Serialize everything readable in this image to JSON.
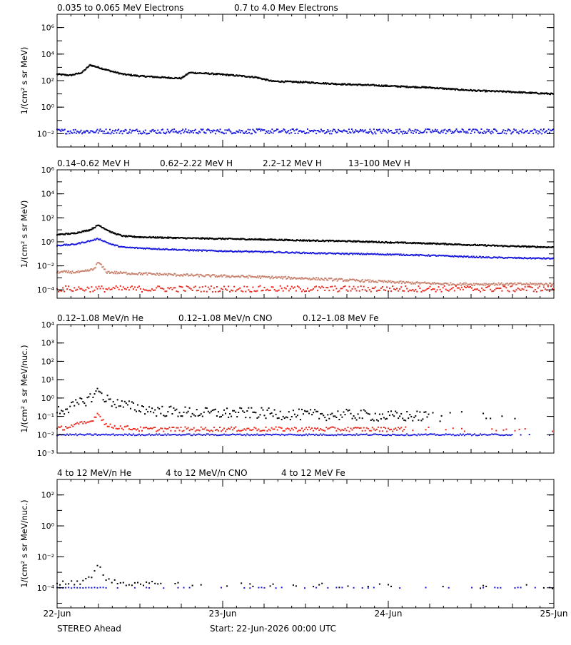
{
  "spacecraft": "STEREO Ahead",
  "start_label": "Start: 22-Jun-2026 00:00 UTC",
  "x_ticks": [
    "22-Jun",
    "23-Jun",
    "24-Jun",
    "25-Jun"
  ],
  "colors": {
    "black": "#000000",
    "blue": "#1a1adc",
    "tan": "#c8826e",
    "red": "#e8281c"
  },
  "chart_data": [
    {
      "type": "scatter",
      "yscale": "log",
      "ylabel": "1/(cm² s sr MeV)",
      "ylim": [
        0.001,
        10000000
      ],
      "ytick_labels": [
        {
          "v": 0.01,
          "t": "10⁻²"
        },
        {
          "v": 1,
          "t": "10⁰"
        },
        {
          "v": 100,
          "t": "10²"
        },
        {
          "v": 10000,
          "t": "10⁴"
        },
        {
          "v": 1000000,
          "t": "10⁶"
        }
      ],
      "xlim_days": [
        0,
        3
      ],
      "series": [
        {
          "name": "0.035 to 0.065 MeV Electrons",
          "color": "black",
          "x": [
            0.0,
            0.08,
            0.15,
            0.2,
            0.26,
            0.33,
            0.4,
            0.5,
            0.65,
            0.75,
            0.8,
            0.95,
            1.1,
            1.2,
            1.3,
            1.5,
            1.7,
            1.9,
            2.1,
            2.25,
            2.4,
            2.55,
            2.7,
            2.85,
            3.0
          ],
          "y": [
            300,
            250,
            400,
            1500,
            900,
            500,
            300,
            220,
            170,
            150,
            400,
            320,
            230,
            180,
            90,
            75,
            55,
            45,
            35,
            30,
            22,
            17,
            15,
            12,
            10
          ],
          "density": 4
        },
        {
          "name": "0.7 to 4.0 Mev Electrons",
          "color": "blue",
          "x": [
            0.0,
            3.0
          ],
          "y": [
            0.015,
            0.015
          ],
          "noise": 0.18,
          "density": 3
        }
      ]
    },
    {
      "type": "scatter",
      "yscale": "log",
      "ylabel": "1/(cm² s sr MeV)",
      "ylim": [
        2e-05,
        1000000
      ],
      "ytick_labels": [
        {
          "v": 0.0001,
          "t": "10⁻⁴"
        },
        {
          "v": 0.01,
          "t": "10⁻²"
        },
        {
          "v": 1,
          "t": "10⁰"
        },
        {
          "v": 100,
          "t": "10²"
        },
        {
          "v": 10000,
          "t": "10⁴"
        },
        {
          "v": 1000000,
          "t": "10⁶"
        }
      ],
      "xlim_days": [
        0,
        3
      ],
      "series": [
        {
          "name": "0.14–0.62 MeV H",
          "color": "black",
          "x": [
            0.0,
            0.1,
            0.2,
            0.25,
            0.33,
            0.4,
            0.5,
            0.8,
            1.0,
            1.3,
            1.5,
            1.8,
            2.0,
            2.3,
            2.5,
            2.7,
            3.0
          ],
          "y": [
            4,
            5,
            10,
            25,
            6,
            3,
            2.5,
            2,
            1.8,
            1.5,
            1.3,
            1.1,
            0.9,
            0.7,
            0.55,
            0.45,
            0.35
          ],
          "density": 4
        },
        {
          "name": "0.62–2.22 MeV H",
          "color": "blue",
          "x": [
            0.0,
            0.1,
            0.2,
            0.25,
            0.33,
            0.4,
            0.5,
            0.8,
            1.0,
            1.3,
            1.6,
            2.0,
            2.3,
            2.6,
            3.0
          ],
          "y": [
            0.5,
            0.6,
            1.2,
            1.8,
            0.6,
            0.35,
            0.3,
            0.2,
            0.17,
            0.14,
            0.11,
            0.09,
            0.07,
            0.05,
            0.04
          ],
          "density": 3
        },
        {
          "name": "2.2–12 MeV H",
          "color": "tan",
          "x": [
            0.0,
            0.15,
            0.22,
            0.25,
            0.3,
            0.4,
            0.6,
            0.9,
            1.2,
            1.5,
            1.8,
            2.1,
            2.4,
            3.0
          ],
          "y": [
            0.003,
            0.003,
            0.005,
            0.02,
            0.003,
            0.0025,
            0.002,
            0.0015,
            0.0012,
            0.0009,
            0.0006,
            0.0004,
            0.0003,
            0.0003
          ],
          "noise": 0.1,
          "density": 3
        },
        {
          "name": "13–100 MeV H",
          "color": "red",
          "x": [
            0.0,
            3.0
          ],
          "y": [
            0.00012,
            0.00012
          ],
          "noise": 0.25,
          "density": 2
        }
      ]
    },
    {
      "type": "scatter",
      "yscale": "log",
      "ylabel": "1/(cm² s sr MeV/nuc.)",
      "ylim": [
        0.001,
        10000
      ],
      "ytick_labels": [
        {
          "v": 0.001,
          "t": "10⁻³"
        },
        {
          "v": 0.01,
          "t": "10⁻²"
        },
        {
          "v": 0.1,
          "t": "10⁻¹"
        },
        {
          "v": 1,
          "t": "10⁰"
        },
        {
          "v": 10,
          "t": "10¹"
        },
        {
          "v": 100,
          "t": "10²"
        },
        {
          "v": 1000,
          "t": "10³"
        },
        {
          "v": 10000,
          "t": "10⁴"
        }
      ],
      "xlim_days": [
        0,
        3
      ],
      "series": [
        {
          "name": "0.12–1.08 MeV/n He",
          "color": "black",
          "x": [
            0.0,
            0.1,
            0.2,
            0.25,
            0.3,
            0.4,
            0.6,
            0.9,
            1.2,
            1.5,
            1.8,
            2.0,
            2.3
          ],
          "y": [
            0.2,
            0.35,
            1.0,
            2.5,
            0.8,
            0.4,
            0.2,
            0.15,
            0.15,
            0.12,
            0.12,
            0.1,
            0.1
          ],
          "noise": 0.3,
          "density": 2,
          "stop": 2.25
        },
        {
          "name": "0.12–1.08 MeV/n CNO",
          "color": "blue",
          "x": [
            0.0,
            3.0
          ],
          "y": [
            0.01,
            0.01
          ],
          "noise": 0.04,
          "density": 2,
          "stop": 2.75
        },
        {
          "name": "0.12–1.08 MeV Fe",
          "color": "red",
          "x": [
            0.0,
            0.2,
            0.25,
            0.3,
            0.5,
            3.0
          ],
          "y": [
            0.02,
            0.05,
            0.15,
            0.03,
            0.02,
            0.02
          ],
          "noise": 0.12,
          "density": 2,
          "stop": 2.1
        }
      ]
    },
    {
      "type": "scatter",
      "yscale": "log",
      "ylabel": "1/(cm² s sr MeV/nuc.)",
      "ylim": [
        5e-06,
        1000
      ],
      "ytick_labels": [
        {
          "v": 0.0001,
          "t": "10⁻⁴"
        },
        {
          "v": 0.01,
          "t": "10⁻²"
        },
        {
          "v": 1,
          "t": "10⁰"
        },
        {
          "v": 100,
          "t": "10²"
        }
      ],
      "xlim_days": [
        0,
        3
      ],
      "series": [
        {
          "name": "4 to 12 MeV/n He",
          "color": "black",
          "x": [
            0.0,
            0.15,
            0.22,
            0.25,
            0.3,
            0.4,
            0.6,
            1.0,
            3.0
          ],
          "y": [
            0.0002,
            0.0002,
            0.0008,
            0.003,
            0.0003,
            0.0002,
            0.00018,
            0.00015,
            0.00012
          ],
          "noise": 0.15,
          "density": 1,
          "sparse_after": 0.6
        },
        {
          "name": "4 to 12 MeV/n CNO",
          "color": "blue",
          "x": [
            0.0,
            3.0
          ],
          "y": [
            0.0001,
            0.0001
          ],
          "noise": 0.02,
          "density": 1,
          "sparse_after": 0.3
        },
        {
          "name": "4 to 12 MeV Fe",
          "color": "red",
          "x": [
            0.0,
            3.0
          ],
          "y": [
            0.0001,
            0.0001
          ],
          "noise": 0.0,
          "density": 0
        }
      ]
    }
  ]
}
